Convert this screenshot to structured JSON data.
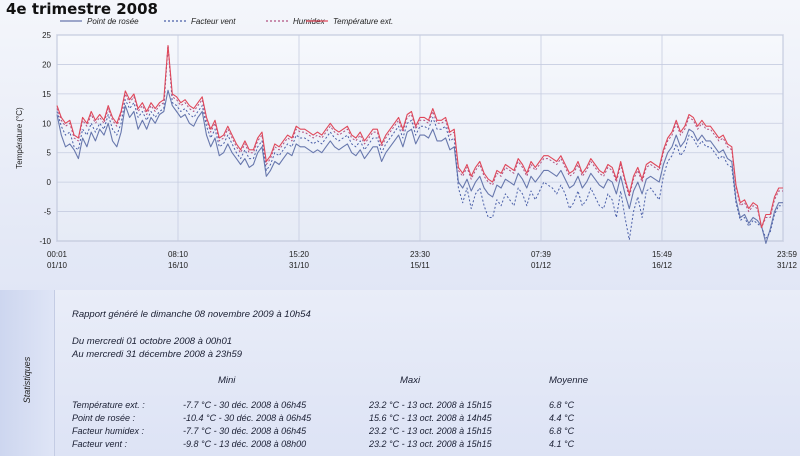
{
  "page": {
    "title": "4e trimestre 2008"
  },
  "chart_data": {
    "type": "line",
    "ylabel": "Température (°C)",
    "ylim": [
      -10,
      25
    ],
    "yticks": [
      25,
      20,
      15,
      10,
      5,
      0,
      -5,
      -10
    ],
    "xtick_labels": [
      {
        "time": "00:01",
        "date": "01/10"
      },
      {
        "time": "08:10",
        "date": "16/10"
      },
      {
        "time": "15:20",
        "date": "31/10"
      },
      {
        "time": "23:30",
        "date": "15/11"
      },
      {
        "time": "07:39",
        "date": "01/12"
      },
      {
        "time": "15:49",
        "date": "16/12"
      },
      {
        "time": "23:59",
        "date": "31/12"
      }
    ],
    "series": [
      {
        "name": "Point de rosée",
        "color": "#6878ad",
        "dash": "",
        "values": [
          11.5,
          8.0,
          6.0,
          6.5,
          5.5,
          4.0,
          7.5,
          6.0,
          8.5,
          7.0,
          9.0,
          8.0,
          10.0,
          7.0,
          6.0,
          8.5,
          13.0,
          11.0,
          12.0,
          9.0,
          10.5,
          9.0,
          11.0,
          10.0,
          11.5,
          12.0,
          15.6,
          13.0,
          12.0,
          11.0,
          11.5,
          10.0,
          9.5,
          11.0,
          12.0,
          8.0,
          6.0,
          7.5,
          4.5,
          5.0,
          6.5,
          5.0,
          4.0,
          3.0,
          4.0,
          2.5,
          3.0,
          5.0,
          6.0,
          1.0,
          2.0,
          3.5,
          3.0,
          4.0,
          5.0,
          4.5,
          6.5,
          6.0,
          6.0,
          5.5,
          5.0,
          5.5,
          5.0,
          6.0,
          7.0,
          6.0,
          5.5,
          6.0,
          6.5,
          5.0,
          4.5,
          5.5,
          4.0,
          5.0,
          6.0,
          6.0,
          3.5,
          5.0,
          6.0,
          7.0,
          8.0,
          6.0,
          8.5,
          9.0,
          6.5,
          8.0,
          8.0,
          7.5,
          9.0,
          7.0,
          7.0,
          7.5,
          5.5,
          6.0,
          0.0,
          -1.0,
          0.5,
          -1.5,
          0.0,
          1.0,
          -1.0,
          -2.0,
          -2.5,
          -0.5,
          -1.0,
          0.5,
          0.0,
          -0.5,
          1.5,
          0.5,
          -1.0,
          1.0,
          0.0,
          1.0,
          2.0,
          2.0,
          1.5,
          1.0,
          2.0,
          0.5,
          -1.0,
          -0.5,
          1.0,
          -1.0,
          0.0,
          1.5,
          0.5,
          -0.5,
          -1.0,
          0.5,
          0.0,
          -2.0,
          1.0,
          -2.0,
          -4.5,
          -1.5,
          0.0,
          -2.0,
          0.5,
          1.0,
          0.5,
          0.0,
          3.0,
          5.0,
          6.0,
          8.0,
          6.0,
          7.0,
          9.0,
          8.5,
          7.0,
          8.0,
          7.0,
          7.0,
          6.0,
          5.0,
          5.5,
          4.0,
          3.5,
          -3.0,
          -6.0,
          -5.5,
          -7.0,
          -6.0,
          -6.5,
          -7.5,
          -10.4,
          -8.0,
          -5.0,
          -3.5,
          -3.5
        ]
      },
      {
        "name": "Facteur vent",
        "color": "#4a5fa8",
        "dash": "2,2",
        "values": [
          12.0,
          9.5,
          8.0,
          8.5,
          6.0,
          5.5,
          9.0,
          8.0,
          10.0,
          8.5,
          10.0,
          9.0,
          11.5,
          9.0,
          8.0,
          10.0,
          14.0,
          12.5,
          13.5,
          11.0,
          12.0,
          10.5,
          12.0,
          11.0,
          12.0,
          12.5,
          23.2,
          13.5,
          13.0,
          12.0,
          12.5,
          11.5,
          11.0,
          12.0,
          13.0,
          9.5,
          7.5,
          9.0,
          6.0,
          6.5,
          8.0,
          6.5,
          5.0,
          4.0,
          5.5,
          4.0,
          4.0,
          6.0,
          7.0,
          2.0,
          3.0,
          5.0,
          4.5,
          5.5,
          6.5,
          6.0,
          8.0,
          7.5,
          7.5,
          7.0,
          6.5,
          7.0,
          6.5,
          7.5,
          8.5,
          7.5,
          7.0,
          7.5,
          8.0,
          6.5,
          6.0,
          7.0,
          5.5,
          6.5,
          7.5,
          7.5,
          5.0,
          6.5,
          7.5,
          8.5,
          9.5,
          7.5,
          10.0,
          10.5,
          8.0,
          9.5,
          9.5,
          9.0,
          11.0,
          9.0,
          9.0,
          9.5,
          7.0,
          7.5,
          -1.0,
          -3.5,
          -1.0,
          -4.5,
          -2.0,
          -1.0,
          -4.0,
          -6.0,
          -6.0,
          -3.0,
          -4.0,
          -2.0,
          -3.0,
          -4.0,
          -1.0,
          -2.0,
          -4.0,
          -1.5,
          -3.0,
          -1.5,
          0.0,
          -0.5,
          -1.0,
          -2.0,
          -0.5,
          -2.0,
          -4.5,
          -3.5,
          -1.5,
          -4.0,
          -3.0,
          -1.0,
          -2.5,
          -4.0,
          -4.5,
          -2.0,
          -3.0,
          -6.0,
          -1.5,
          -6.0,
          -9.8,
          -5.0,
          -2.5,
          -6.0,
          -1.5,
          -1.0,
          -2.0,
          -3.0,
          1.0,
          3.5,
          4.5,
          6.5,
          4.5,
          5.5,
          8.0,
          7.5,
          6.0,
          7.0,
          6.0,
          6.0,
          5.0,
          4.0,
          4.5,
          3.0,
          2.5,
          -3.5,
          -6.5,
          -6.0,
          -7.5,
          -6.5,
          -7.0,
          -7.7,
          -9.5,
          -8.5,
          -5.5,
          -4.0,
          -4.0
        ]
      },
      {
        "name": "Humidex",
        "color": "#b05080",
        "dash": "2,2",
        "values": [
          12.5,
          10.5,
          9.5,
          10.0,
          7.5,
          7.0,
          10.5,
          9.5,
          11.5,
          10.0,
          11.0,
          10.0,
          12.5,
          10.5,
          9.5,
          11.5,
          15.0,
          13.5,
          14.5,
          12.0,
          13.0,
          11.5,
          13.0,
          12.0,
          13.0,
          13.5,
          23.2,
          14.5,
          14.0,
          13.0,
          13.5,
          12.5,
          12.0,
          13.0,
          14.0,
          10.5,
          8.5,
          10.0,
          7.0,
          7.5,
          9.0,
          7.5,
          6.0,
          5.0,
          6.5,
          5.0,
          5.0,
          7.0,
          8.0,
          3.0,
          4.0,
          6.0,
          5.5,
          6.5,
          7.5,
          7.0,
          9.0,
          8.5,
          8.5,
          8.0,
          7.5,
          8.0,
          7.5,
          8.5,
          9.5,
          8.5,
          8.0,
          8.5,
          9.0,
          7.5,
          7.0,
          8.0,
          6.5,
          7.5,
          8.5,
          8.5,
          6.0,
          7.5,
          8.5,
          9.5,
          10.5,
          8.5,
          11.0,
          11.5,
          9.0,
          10.5,
          10.5,
          10.0,
          12.0,
          10.0,
          10.0,
          10.5,
          8.0,
          8.5,
          2.0,
          1.0,
          2.5,
          0.5,
          2.0,
          3.0,
          1.0,
          0.0,
          -0.5,
          1.5,
          1.0,
          2.5,
          2.0,
          1.5,
          3.5,
          2.5,
          1.0,
          3.0,
          2.0,
          3.0,
          4.0,
          4.0,
          3.5,
          3.0,
          4.0,
          2.5,
          1.0,
          1.5,
          3.0,
          1.0,
          2.0,
          3.5,
          2.5,
          1.5,
          1.0,
          2.5,
          2.0,
          0.0,
          3.0,
          0.0,
          -2.5,
          0.5,
          2.0,
          0.0,
          2.5,
          3.0,
          2.5,
          2.0,
          5.0,
          7.0,
          8.0,
          10.0,
          8.0,
          9.0,
          11.0,
          10.5,
          9.0,
          10.0,
          9.0,
          9.0,
          8.0,
          7.0,
          7.5,
          6.0,
          5.5,
          -1.0,
          -4.0,
          -3.5,
          -5.0,
          -4.0,
          -4.5,
          -7.7,
          -6.0,
          -6.0,
          -3.0,
          -1.5,
          -1.5
        ]
      },
      {
        "name": "Température ext.",
        "color": "#e0485a",
        "dash": "",
        "values": [
          13.0,
          11.0,
          10.0,
          10.5,
          8.0,
          7.5,
          11.0,
          10.0,
          12.0,
          10.5,
          11.5,
          10.5,
          13.0,
          11.0,
          10.0,
          12.0,
          15.5,
          14.0,
          15.0,
          12.5,
          13.5,
          12.0,
          13.5,
          12.5,
          13.5,
          14.0,
          23.2,
          15.0,
          14.5,
          13.5,
          14.0,
          13.0,
          12.5,
          13.5,
          14.5,
          11.0,
          9.0,
          10.5,
          7.5,
          8.0,
          9.5,
          8.0,
          6.5,
          5.5,
          7.0,
          5.5,
          5.5,
          7.5,
          8.5,
          3.5,
          4.5,
          6.5,
          6.0,
          7.0,
          8.0,
          7.5,
          9.5,
          9.0,
          9.0,
          8.5,
          8.0,
          8.5,
          8.0,
          9.0,
          10.0,
          9.0,
          8.5,
          9.0,
          9.5,
          8.0,
          7.5,
          8.5,
          7.0,
          8.0,
          9.0,
          9.0,
          6.5,
          8.0,
          9.0,
          10.0,
          11.0,
          9.0,
          11.5,
          12.0,
          9.5,
          11.0,
          11.0,
          10.5,
          12.5,
          10.5,
          10.5,
          11.0,
          8.5,
          9.0,
          2.5,
          1.5,
          3.0,
          1.0,
          2.5,
          3.5,
          1.5,
          0.5,
          0.0,
          2.0,
          1.5,
          3.0,
          2.5,
          2.0,
          4.0,
          3.0,
          1.5,
          3.5,
          2.5,
          3.5,
          4.5,
          4.5,
          4.0,
          3.5,
          4.5,
          3.0,
          1.5,
          2.0,
          3.5,
          1.5,
          2.5,
          4.0,
          3.0,
          2.0,
          1.5,
          3.0,
          2.5,
          0.5,
          3.5,
          0.5,
          -2.0,
          1.0,
          2.5,
          0.5,
          3.0,
          3.5,
          3.0,
          2.5,
          5.5,
          7.5,
          8.5,
          10.5,
          8.5,
          9.5,
          11.5,
          11.0,
          9.5,
          10.5,
          9.5,
          9.5,
          8.5,
          7.5,
          8.0,
          6.5,
          6.0,
          -0.5,
          -3.5,
          -3.0,
          -4.5,
          -3.5,
          -4.0,
          -7.7,
          -5.5,
          -5.5,
          -2.5,
          -1.0,
          -1.0
        ]
      }
    ],
    "grid": true,
    "legend": "top"
  },
  "stats": {
    "side_label": "Statistiques",
    "report_generated": "Rapport généré le dimanche 08 novembre 2009 à 10h54",
    "period_from": "Du mercredi 01 octobre 2008 à 00h01",
    "period_to": "Au mercredi 31 décembre 2008 à 23h59",
    "headers": {
      "min": "Mini",
      "max": "Maxi",
      "avg": "Moyenne"
    },
    "rows": [
      {
        "label": "Température ext. :",
        "min": "-7.7 °C - 30 déc. 2008 à 06h45",
        "max": "23.2 °C - 13 oct. 2008 à 15h15",
        "avg": "6.8 °C"
      },
      {
        "label": "Point de rosée :",
        "min": "-10.4 °C - 30 déc. 2008 à 06h45",
        "max": "15.6 °C - 13 oct. 2008 à 14h45",
        "avg": "4.4 °C"
      },
      {
        "label": "Facteur humidex :",
        "min": "-7.7 °C - 30 déc. 2008 à 06h45",
        "max": "23.2 °C - 13 oct. 2008 à 15h15",
        "avg": "6.8 °C"
      },
      {
        "label": "Facteur vent :",
        "min": "-9.8 °C - 13 déc. 2008 à 08h00",
        "max": "23.2 °C - 13 oct. 2008 à 15h15",
        "avg": "4.1 °C"
      }
    ]
  }
}
